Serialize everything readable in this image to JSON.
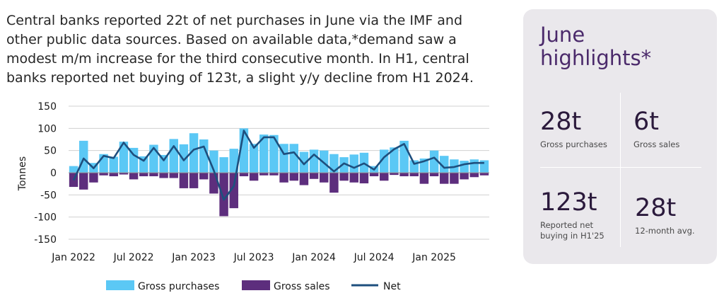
{
  "intro_text": "Central banks reported 22t of net purchases in June via the IMF and other public data sources. Based on available data,*demand saw a modest m/m increase for the third consecutive month. In H1, central banks reported net buying of 123t, a slight y/y decline from H1 2024.",
  "highlights": {
    "title": "June\nhighlights*",
    "items": [
      {
        "value": "28t",
        "label": "Gross purchases"
      },
      {
        "value": "6t",
        "label": "Gross sales"
      },
      {
        "value": "123t",
        "label": "Reported net\nbuying in H1'25"
      },
      {
        "value": "28t",
        "label": "12-month avg."
      }
    ]
  },
  "colors": {
    "purchases": "#5bc8f5",
    "sales": "#5d2e7d",
    "net": "#1e4f7e",
    "panel_bg": "#eae8ec"
  },
  "chart_data": {
    "type": "bar",
    "ylabel": "Tonnes",
    "xlabel": "",
    "ylim": [
      -150,
      150
    ],
    "yticks": [
      150,
      100,
      50,
      0,
      -50,
      -100,
      -150
    ],
    "x_tick_labels": [
      "Jan 2022",
      "Jul 2022",
      "Jan 2023",
      "Jul 2023",
      "Jan 2024",
      "Jul 2024",
      "Jan 2025"
    ],
    "x_tick_month_index": [
      0,
      6,
      12,
      18,
      24,
      30,
      36
    ],
    "grid": true,
    "legend_position": "bottom",
    "categories": [
      "Jan 2022",
      "Feb 2022",
      "Mar 2022",
      "Apr 2022",
      "May 2022",
      "Jun 2022",
      "Jul 2022",
      "Aug 2022",
      "Sep 2022",
      "Oct 2022",
      "Nov 2022",
      "Dec 2022",
      "Jan 2023",
      "Feb 2023",
      "Mar 2023",
      "Apr 2023",
      "May 2023",
      "Jun 2023",
      "Jul 2023",
      "Aug 2023",
      "Sep 2023",
      "Oct 2023",
      "Nov 2023",
      "Dec 2023",
      "Jan 2024",
      "Feb 2024",
      "Mar 2024",
      "Apr 2024",
      "May 2024",
      "Jun 2024",
      "Jul 2024",
      "Aug 2024",
      "Sep 2024",
      "Oct 2024",
      "Nov 2024",
      "Dec 2024",
      "Jan 2025",
      "Feb 2025",
      "Mar 2025",
      "Apr 2025",
      "May 2025",
      "Jun 2025"
    ],
    "series": [
      {
        "name": "Gross purchases",
        "type": "bar",
        "values": [
          15,
          72,
          22,
          42,
          36,
          70,
          56,
          37,
          63,
          40,
          76,
          64,
          89,
          75,
          50,
          35,
          54,
          100,
          65,
          86,
          85,
          65,
          65,
          47,
          52,
          50,
          42,
          35,
          41,
          45,
          15,
          52,
          57,
          72,
          28,
          32,
          50,
          38,
          30,
          27,
          30,
          28
        ]
      },
      {
        "name": "Gross sales",
        "type": "bar",
        "values": [
          -32,
          -38,
          -22,
          -6,
          -8,
          -4,
          -15,
          -8,
          -8,
          -12,
          -12,
          -35,
          -35,
          -15,
          -47,
          -98,
          -80,
          -8,
          -18,
          -6,
          -6,
          -22,
          -18,
          -28,
          -14,
          -22,
          -45,
          -18,
          -22,
          -24,
          -8,
          -18,
          -5,
          -8,
          -8,
          -25,
          -8,
          -25,
          -25,
          -15,
          -10,
          -6
        ]
      },
      {
        "name": "Net",
        "type": "line",
        "values": [
          -17,
          32,
          10,
          38,
          33,
          68,
          40,
          27,
          56,
          28,
          60,
          28,
          52,
          59,
          5,
          -61,
          -30,
          95,
          56,
          80,
          80,
          42,
          46,
          19,
          41,
          22,
          3,
          21,
          11,
          21,
          7,
          35,
          53,
          65,
          20,
          26,
          34,
          11,
          13,
          19,
          22,
          22
        ]
      }
    ]
  }
}
